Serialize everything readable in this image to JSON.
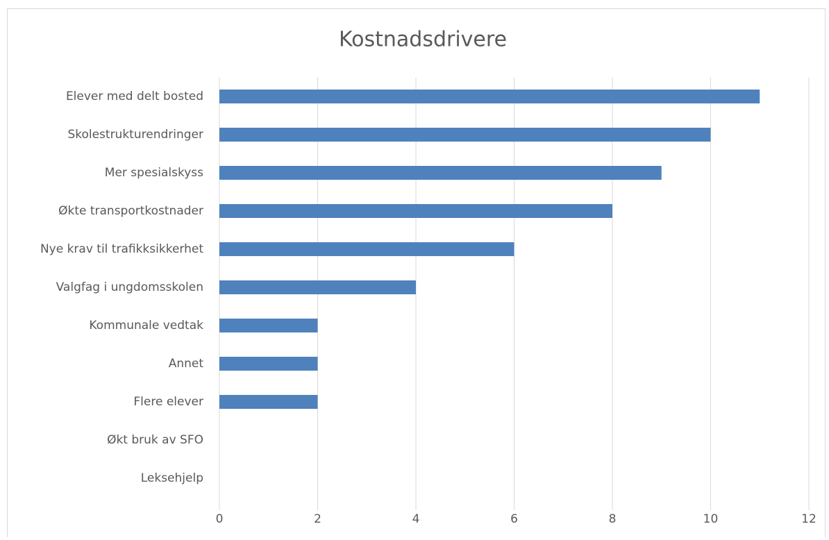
{
  "chart_data": {
    "type": "bar",
    "orientation": "horizontal",
    "title": "Kostnadsdrivere",
    "categories": [
      "Elever med delt bosted",
      "Skolestrukturendringer",
      "Mer spesialskyss",
      "Økte transportkostnader",
      "Nye krav til trafikksikkerhet",
      "Valgfag i ungdomsskolen",
      "Kommunale vedtak",
      "Annet",
      "Flere elever",
      "Økt bruk av SFO",
      "Leksehjelp"
    ],
    "values": [
      11,
      10,
      9,
      8,
      6,
      4,
      2,
      2,
      2,
      0,
      0
    ],
    "color": "#4f81bd",
    "xlim": [
      0,
      12
    ],
    "xticks": [
      0,
      2,
      4,
      6,
      8,
      10,
      12
    ],
    "grid": true
  }
}
